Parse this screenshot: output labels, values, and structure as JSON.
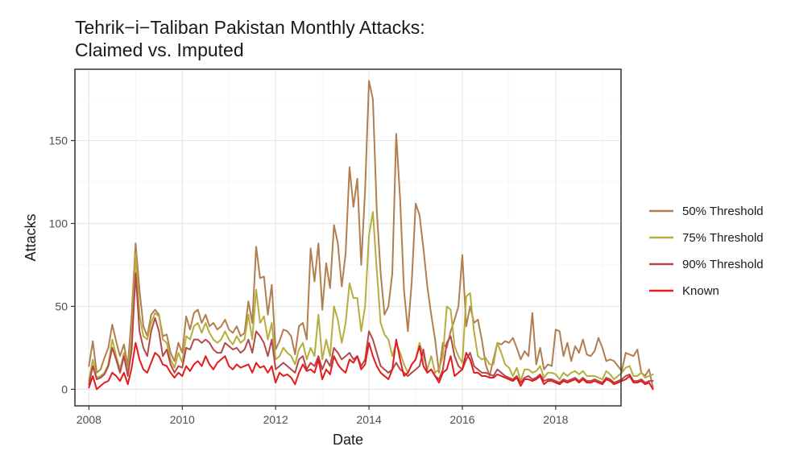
{
  "chart_data": {
    "type": "line",
    "title": [
      "Tehrik−i−Taliban Pakistan Monthly Attacks:",
      "Claimed vs. Imputed"
    ],
    "xlabel": "Date",
    "ylabel": "Attacks",
    "xlim": [
      2007.7,
      2019.4
    ],
    "ylim": [
      -10,
      193
    ],
    "x_ticks": [
      2008,
      2010,
      2012,
      2014,
      2016,
      2018
    ],
    "x_tick_labels": [
      "2008",
      "2010",
      "2012",
      "2014",
      "2016",
      "2018"
    ],
    "y_ticks": [
      0,
      50,
      100,
      150
    ],
    "y_tick_labels": [
      "0",
      "50",
      "100",
      "150"
    ],
    "grid": true,
    "legend_position": "right",
    "x_start": 2008.0,
    "x_step_months": 1,
    "series": [
      {
        "name": "50% Threshold",
        "color": "#b27e4f",
        "values": [
          14,
          29,
          10,
          12,
          19,
          25,
          39,
          29,
          20,
          27,
          14,
          45,
          88,
          60,
          38,
          32,
          45,
          48,
          45,
          32,
          33,
          22,
          17,
          28,
          22,
          44,
          36,
          46,
          48,
          40,
          45,
          38,
          40,
          36,
          38,
          42,
          36,
          34,
          38,
          32,
          34,
          53,
          40,
          86,
          67,
          68,
          45,
          63,
          24,
          29,
          36,
          35,
          32,
          21,
          38,
          40,
          30,
          85,
          65,
          88,
          48,
          76,
          61,
          99,
          88,
          62,
          82,
          134,
          110,
          127,
          75,
          120,
          186,
          175,
          108,
          70,
          45,
          50,
          70,
          154,
          115,
          60,
          35,
          65,
          112,
          105,
          85,
          62,
          45,
          30,
          10,
          28,
          25,
          35,
          42,
          50,
          81,
          38,
          50,
          40,
          42,
          30,
          15,
          8,
          18,
          28,
          27,
          29,
          28,
          31,
          25,
          18,
          23,
          20,
          46,
          15,
          25,
          12,
          15,
          14,
          36,
          35,
          20,
          28,
          17,
          26,
          22,
          30,
          21,
          20,
          23,
          31,
          25,
          17,
          18,
          17,
          14,
          11,
          22,
          21,
          20,
          24,
          10,
          8,
          12,
          1
        ],
        "outliers": {}
      },
      {
        "name": "75% Threshold",
        "color": "#b5ae3e",
        "values": [
          5,
          18,
          7,
          8,
          10,
          15,
          30,
          20,
          12,
          22,
          10,
          30,
          82,
          45,
          32,
          30,
          40,
          46,
          44,
          30,
          28,
          18,
          13,
          22,
          16,
          32,
          30,
          38,
          40,
          34,
          40,
          34,
          30,
          28,
          30,
          35,
          30,
          27,
          32,
          28,
          30,
          45,
          30,
          60,
          40,
          44,
          30,
          40,
          18,
          20,
          25,
          22,
          20,
          15,
          24,
          28,
          18,
          25,
          20,
          45,
          18,
          30,
          20,
          50,
          42,
          28,
          40,
          64,
          55,
          55,
          35,
          50,
          93,
          107,
          72,
          40,
          33,
          30,
          20,
          28,
          22,
          15,
          10,
          15,
          18,
          28,
          20,
          12,
          20,
          10,
          12,
          20,
          50,
          48,
          26,
          20,
          16,
          56,
          58,
          35,
          20,
          18,
          19,
          15,
          15,
          28,
          22,
          15,
          13,
          8,
          13,
          5,
          12,
          12,
          10,
          11,
          14,
          7,
          10,
          10,
          9,
          6,
          10,
          8,
          10,
          11,
          9,
          11,
          8,
          8,
          8,
          7,
          6,
          11,
          9,
          6,
          8,
          10,
          13,
          14,
          8,
          8,
          10,
          7,
          8,
          9
        ],
        "outliers": {}
      },
      {
        "name": "90% Threshold",
        "color": "#b5484b",
        "values": [
          3,
          14,
          6,
          7,
          9,
          14,
          25,
          18,
          10,
          20,
          8,
          24,
          70,
          35,
          25,
          20,
          35,
          43,
          35,
          20,
          24,
          15,
          10,
          14,
          13,
          25,
          24,
          30,
          30,
          28,
          30,
          28,
          24,
          22,
          22,
          28,
          26,
          24,
          25,
          22,
          24,
          30,
          22,
          35,
          32,
          28,
          20,
          30,
          12,
          14,
          16,
          14,
          12,
          10,
          18,
          20,
          12,
          16,
          14,
          20,
          12,
          18,
          14,
          25,
          22,
          18,
          20,
          22,
          18,
          20,
          14,
          18,
          35,
          30,
          22,
          14,
          12,
          10,
          12,
          16,
          12,
          10,
          8,
          10,
          12,
          14,
          24,
          10,
          12,
          8,
          6,
          12,
          28,
          32,
          20,
          14,
          12,
          18,
          22,
          14,
          12,
          10,
          10,
          9,
          8,
          12,
          10,
          8,
          7,
          6,
          8,
          4,
          7,
          8,
          6,
          7,
          9,
          5,
          6,
          6,
          5,
          4,
          6,
          5,
          6,
          7,
          5,
          7,
          5,
          5,
          6,
          5,
          4,
          7,
          6,
          4,
          5,
          6,
          8,
          9,
          5,
          5,
          6,
          4,
          5,
          5
        ],
        "outliers": {}
      },
      {
        "name": "Known",
        "color": "#e41a1c",
        "values": [
          1,
          8,
          0,
          2,
          4,
          5,
          10,
          8,
          5,
          10,
          3,
          13,
          28,
          18,
          12,
          10,
          16,
          22,
          20,
          15,
          14,
          10,
          7,
          10,
          8,
          14,
          11,
          15,
          17,
          14,
          20,
          15,
          12,
          16,
          18,
          20,
          14,
          12,
          15,
          13,
          14,
          15,
          10,
          16,
          13,
          14,
          10,
          14,
          4,
          10,
          8,
          9,
          7,
          3,
          10,
          15,
          11,
          12,
          10,
          18,
          6,
          12,
          9,
          20,
          15,
          12,
          10,
          18,
          16,
          20,
          12,
          15,
          28,
          20,
          14,
          10,
          8,
          6,
          12,
          30,
          18,
          8,
          10,
          15,
          18,
          26,
          14,
          10,
          12,
          8,
          4,
          10,
          12,
          20,
          8,
          10,
          12,
          22,
          18,
          10,
          10,
          8,
          8,
          7,
          7,
          9,
          8,
          7,
          6,
          5,
          7,
          2,
          6,
          6,
          5,
          6,
          8,
          3,
          5,
          5,
          4,
          3,
          5,
          4,
          5,
          6,
          4,
          6,
          4,
          4,
          5,
          4,
          3,
          6,
          5,
          3,
          4,
          5,
          6,
          8,
          4,
          4,
          5,
          3,
          4,
          0
        ],
        "outliers": {}
      }
    ]
  }
}
